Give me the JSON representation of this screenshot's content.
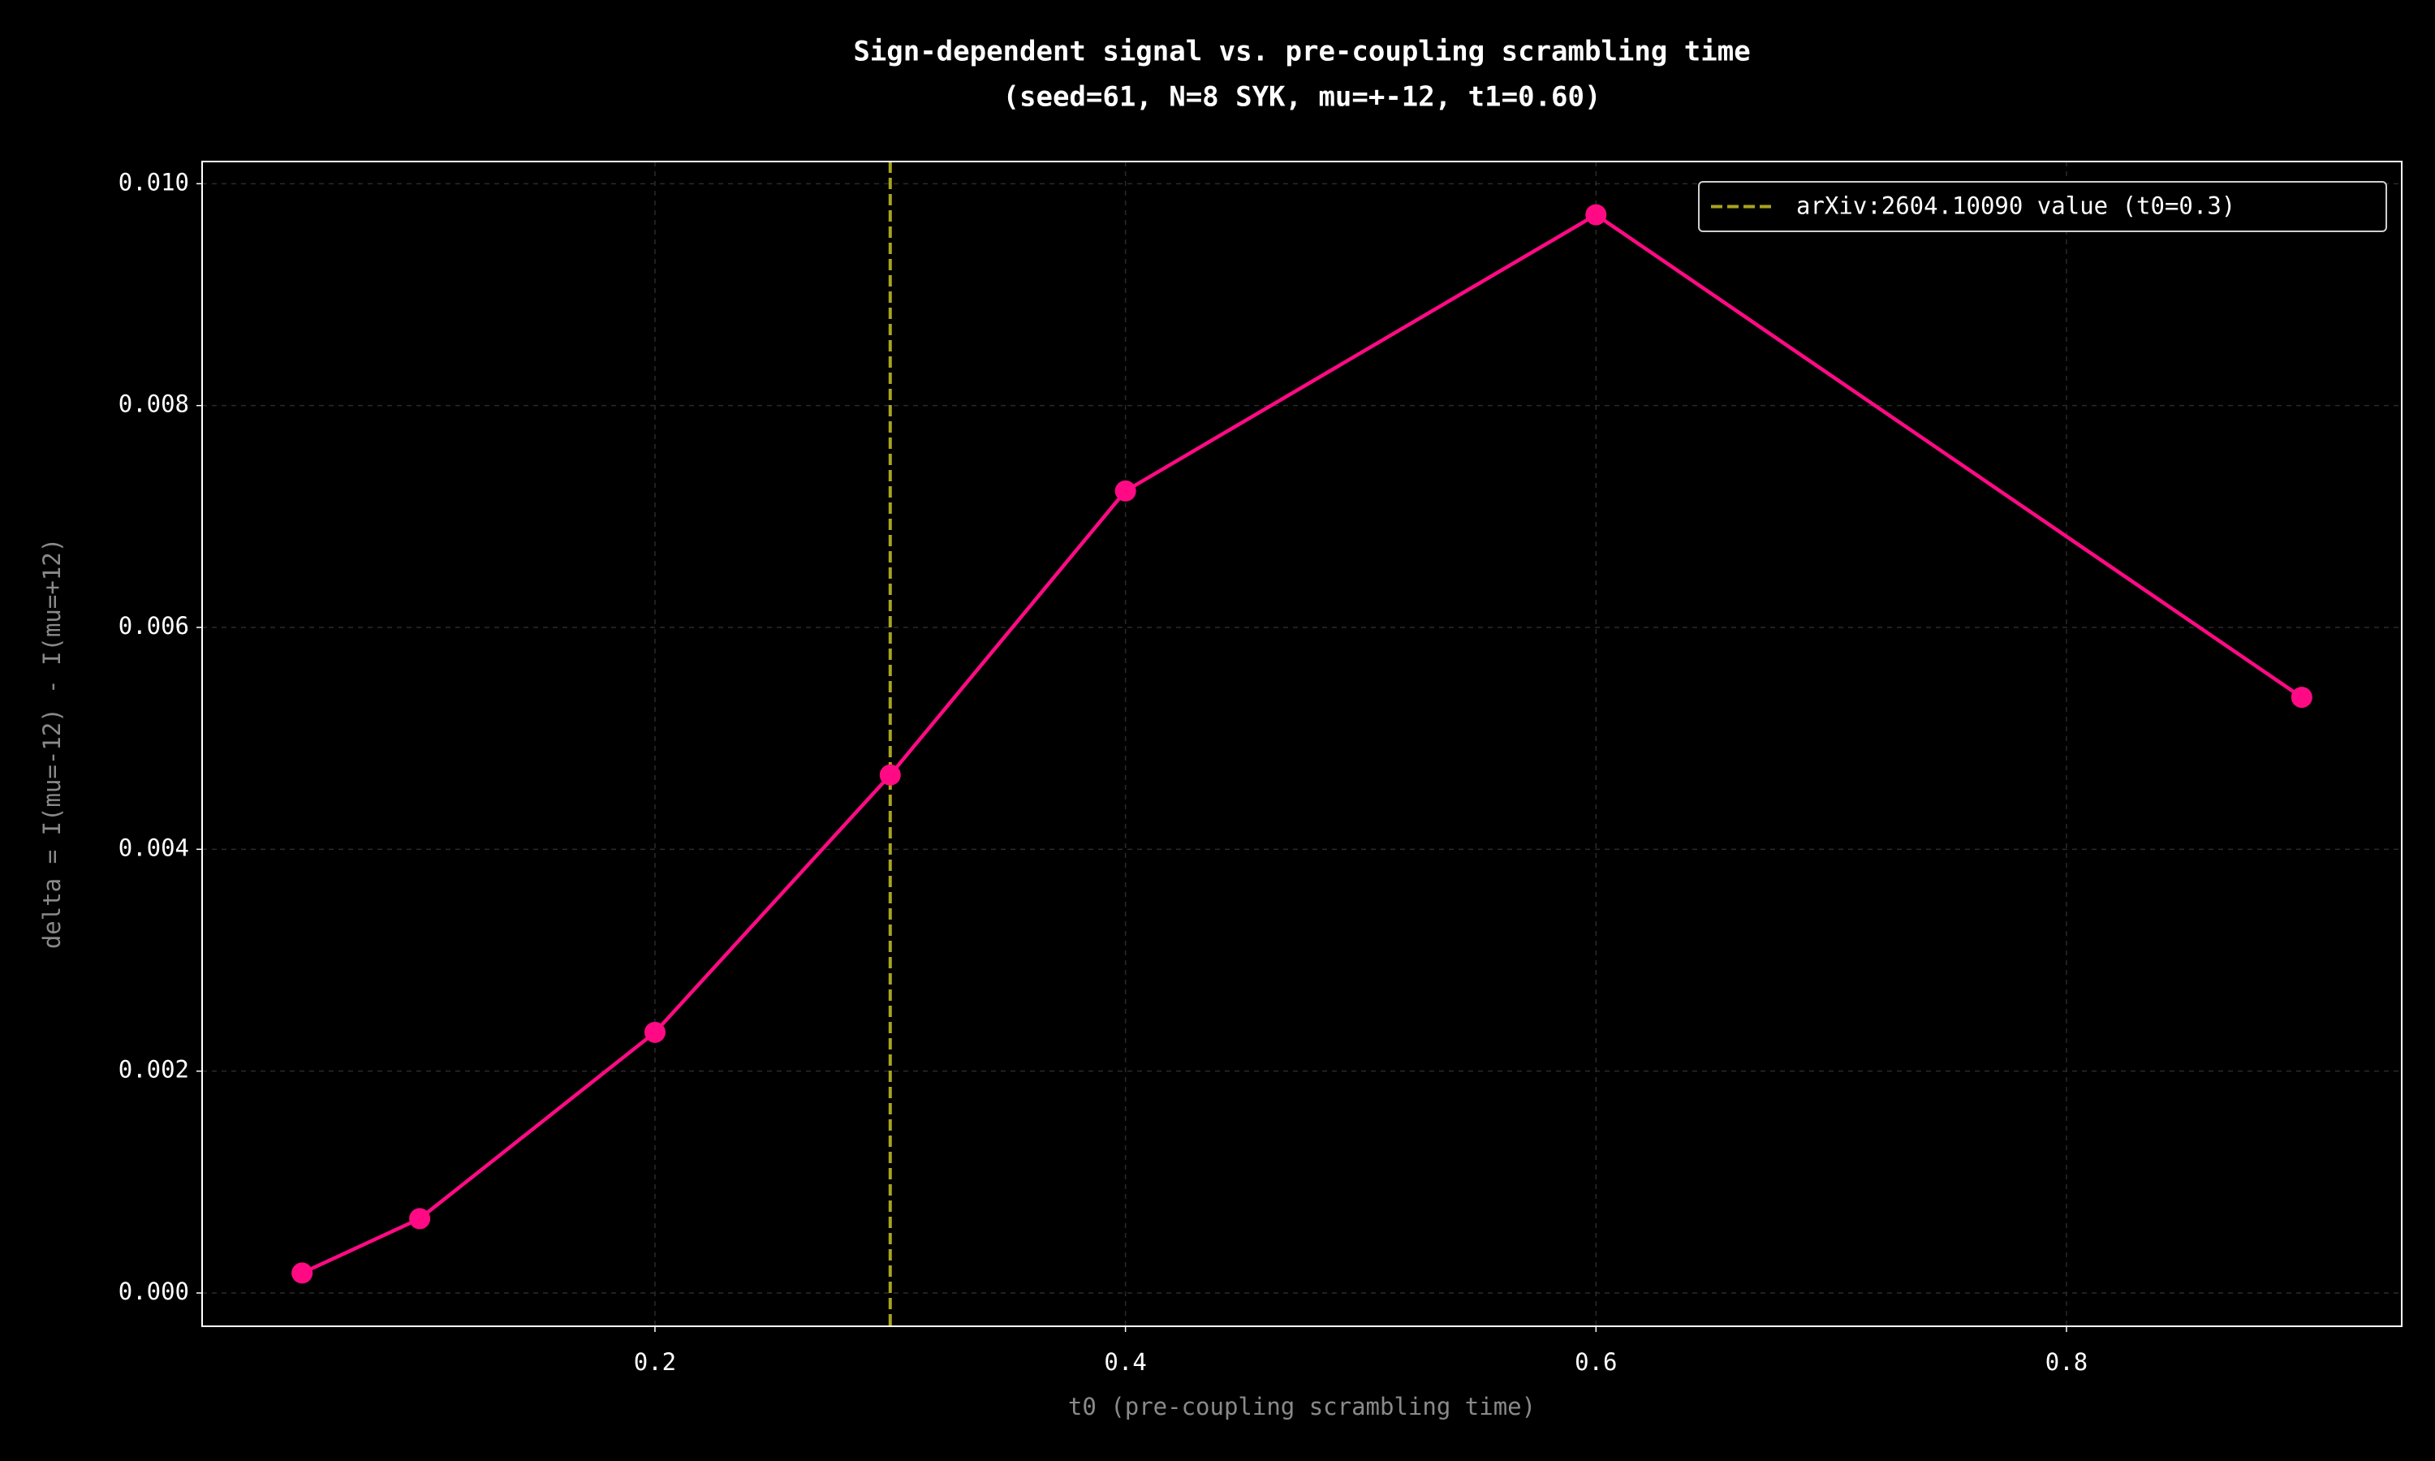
{
  "chart_data": {
    "type": "line",
    "title": [
      "Sign-dependent signal vs. pre-coupling scrambling time",
      "(seed=61, N=8 SYK, mu=+-12, t1=0.60)"
    ],
    "xlabel": "t0 (pre-coupling scrambling time)",
    "ylabel": "delta = I(mu=-12) - I(mu=+12)",
    "x": [
      0.05,
      0.1,
      0.2,
      0.3,
      0.4,
      0.6,
      0.9
    ],
    "series": [
      {
        "color": "#ff0a84",
        "values": [
          0.00018,
          0.00067,
          0.00235,
          0.00467,
          0.00723,
          0.00972,
          0.00537
        ]
      }
    ],
    "vline": {
      "x": 0.3,
      "label": "arXiv:2604.10090 value (t0=0.3)",
      "color": "#a9a31f"
    },
    "xlim": [
      0.0075,
      0.9425
    ],
    "ylim": [
      -0.0003,
      0.0102
    ],
    "xticks": [
      0.2,
      0.4,
      0.6,
      0.8
    ],
    "yticks": [
      {
        "value": 0,
        "label": "0.000"
      },
      {
        "value": 0.002,
        "label": "0.002"
      },
      {
        "value": 0.004,
        "label": "0.004"
      },
      {
        "value": 0.006,
        "label": "0.006"
      },
      {
        "value": 0.008,
        "label": "0.008"
      },
      {
        "value": 0.01,
        "label": "0.010"
      }
    ],
    "grid": true,
    "legend": "upper right"
  }
}
